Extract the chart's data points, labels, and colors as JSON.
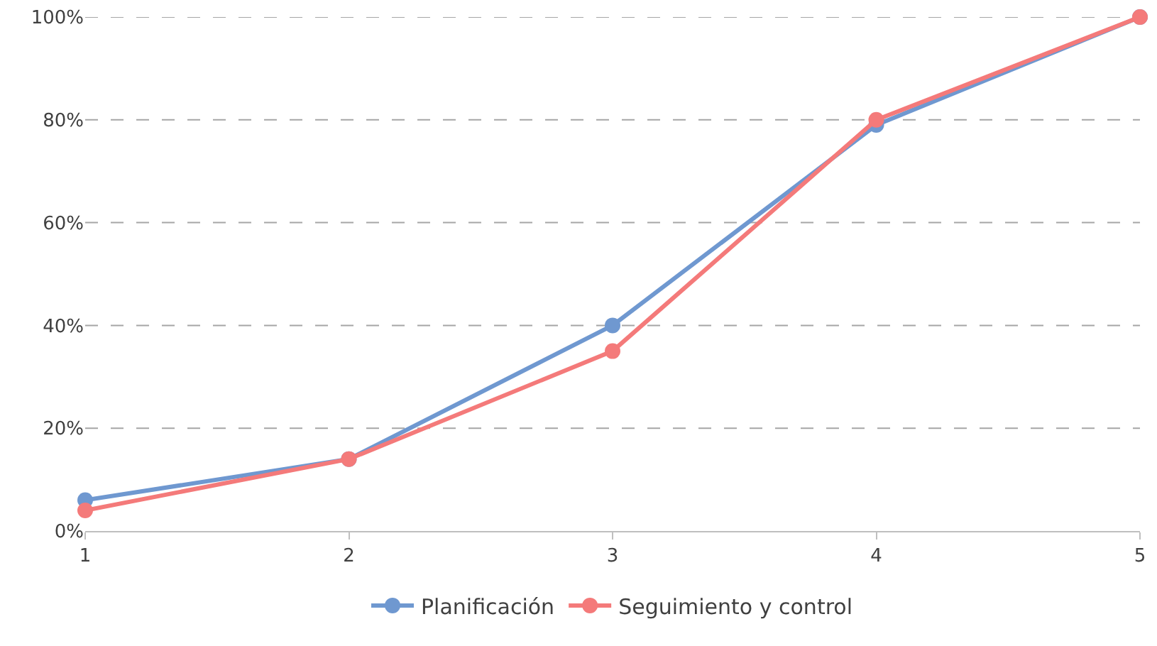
{
  "chart_data": {
    "type": "line",
    "x": [
      1,
      2,
      3,
      4,
      5
    ],
    "series": [
      {
        "name": "Planificación",
        "color": "#6f98d0",
        "values": [
          6,
          14,
          40,
          79,
          100
        ]
      },
      {
        "name": "Seguimiento y control",
        "color": "#f47a7a",
        "values": [
          4,
          14,
          35,
          80,
          100
        ]
      }
    ],
    "xlim": [
      1,
      5
    ],
    "xticks": [
      1,
      2,
      3,
      4,
      5
    ],
    "ylim": [
      0,
      100
    ],
    "yticks": [
      {
        "value": 0,
        "label": "0%"
      },
      {
        "value": 20,
        "label": "20%"
      },
      {
        "value": 40,
        "label": "40%"
      },
      {
        "value": 60,
        "label": "60%"
      },
      {
        "value": 80,
        "label": "80%"
      },
      {
        "value": 100,
        "label": "100%"
      }
    ],
    "grid": "y",
    "legend": "bottom",
    "marker": "circle",
    "line_style": "solid"
  }
}
